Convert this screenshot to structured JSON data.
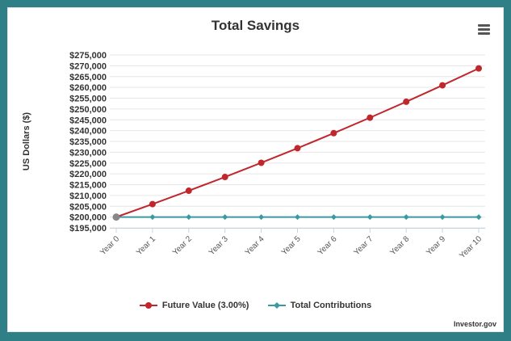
{
  "chart_data": {
    "type": "line",
    "title": "Total Savings",
    "ylabel": "US Dollars ($)",
    "xlabel": "",
    "categories": [
      "Year 0",
      "Year 1",
      "Year 2",
      "Year 3",
      "Year 4",
      "Year 5",
      "Year 6",
      "Year 7",
      "Year 8",
      "Year 9",
      "Year 10"
    ],
    "ylim": [
      195000,
      275000
    ],
    "yticks": [
      195000,
      200000,
      205000,
      210000,
      215000,
      220000,
      225000,
      230000,
      235000,
      240000,
      245000,
      250000,
      255000,
      260000,
      265000,
      270000,
      275000
    ],
    "ytick_labels": [
      "$195,000",
      "$200,000",
      "$205,000",
      "$210,000",
      "$215,000",
      "$220,000",
      "$225,000",
      "$230,000",
      "$235,000",
      "$240,000",
      "$245,000",
      "$250,000",
      "$255,000",
      "$260,000",
      "$265,000",
      "$270,000",
      "$275,000"
    ],
    "grid": true,
    "legend_position": "bottom-center",
    "series": [
      {
        "name": "Future Value (3.00%)",
        "color": "#c0272d",
        "marker": "circle",
        "values": [
          200000,
          206000,
          212180,
          218545,
          225102,
          231855,
          238810,
          245975,
          253354,
          260955,
          268783
        ]
      },
      {
        "name": "Total Contributions",
        "color": "#3a9aa0",
        "marker": "diamond",
        "values": [
          200000,
          200000,
          200000,
          200000,
          200000,
          200000,
          200000,
          200000,
          200000,
          200000,
          200000
        ]
      }
    ]
  },
  "credit": "Investor.gov",
  "menu_icon": "hamburger-menu-icon"
}
